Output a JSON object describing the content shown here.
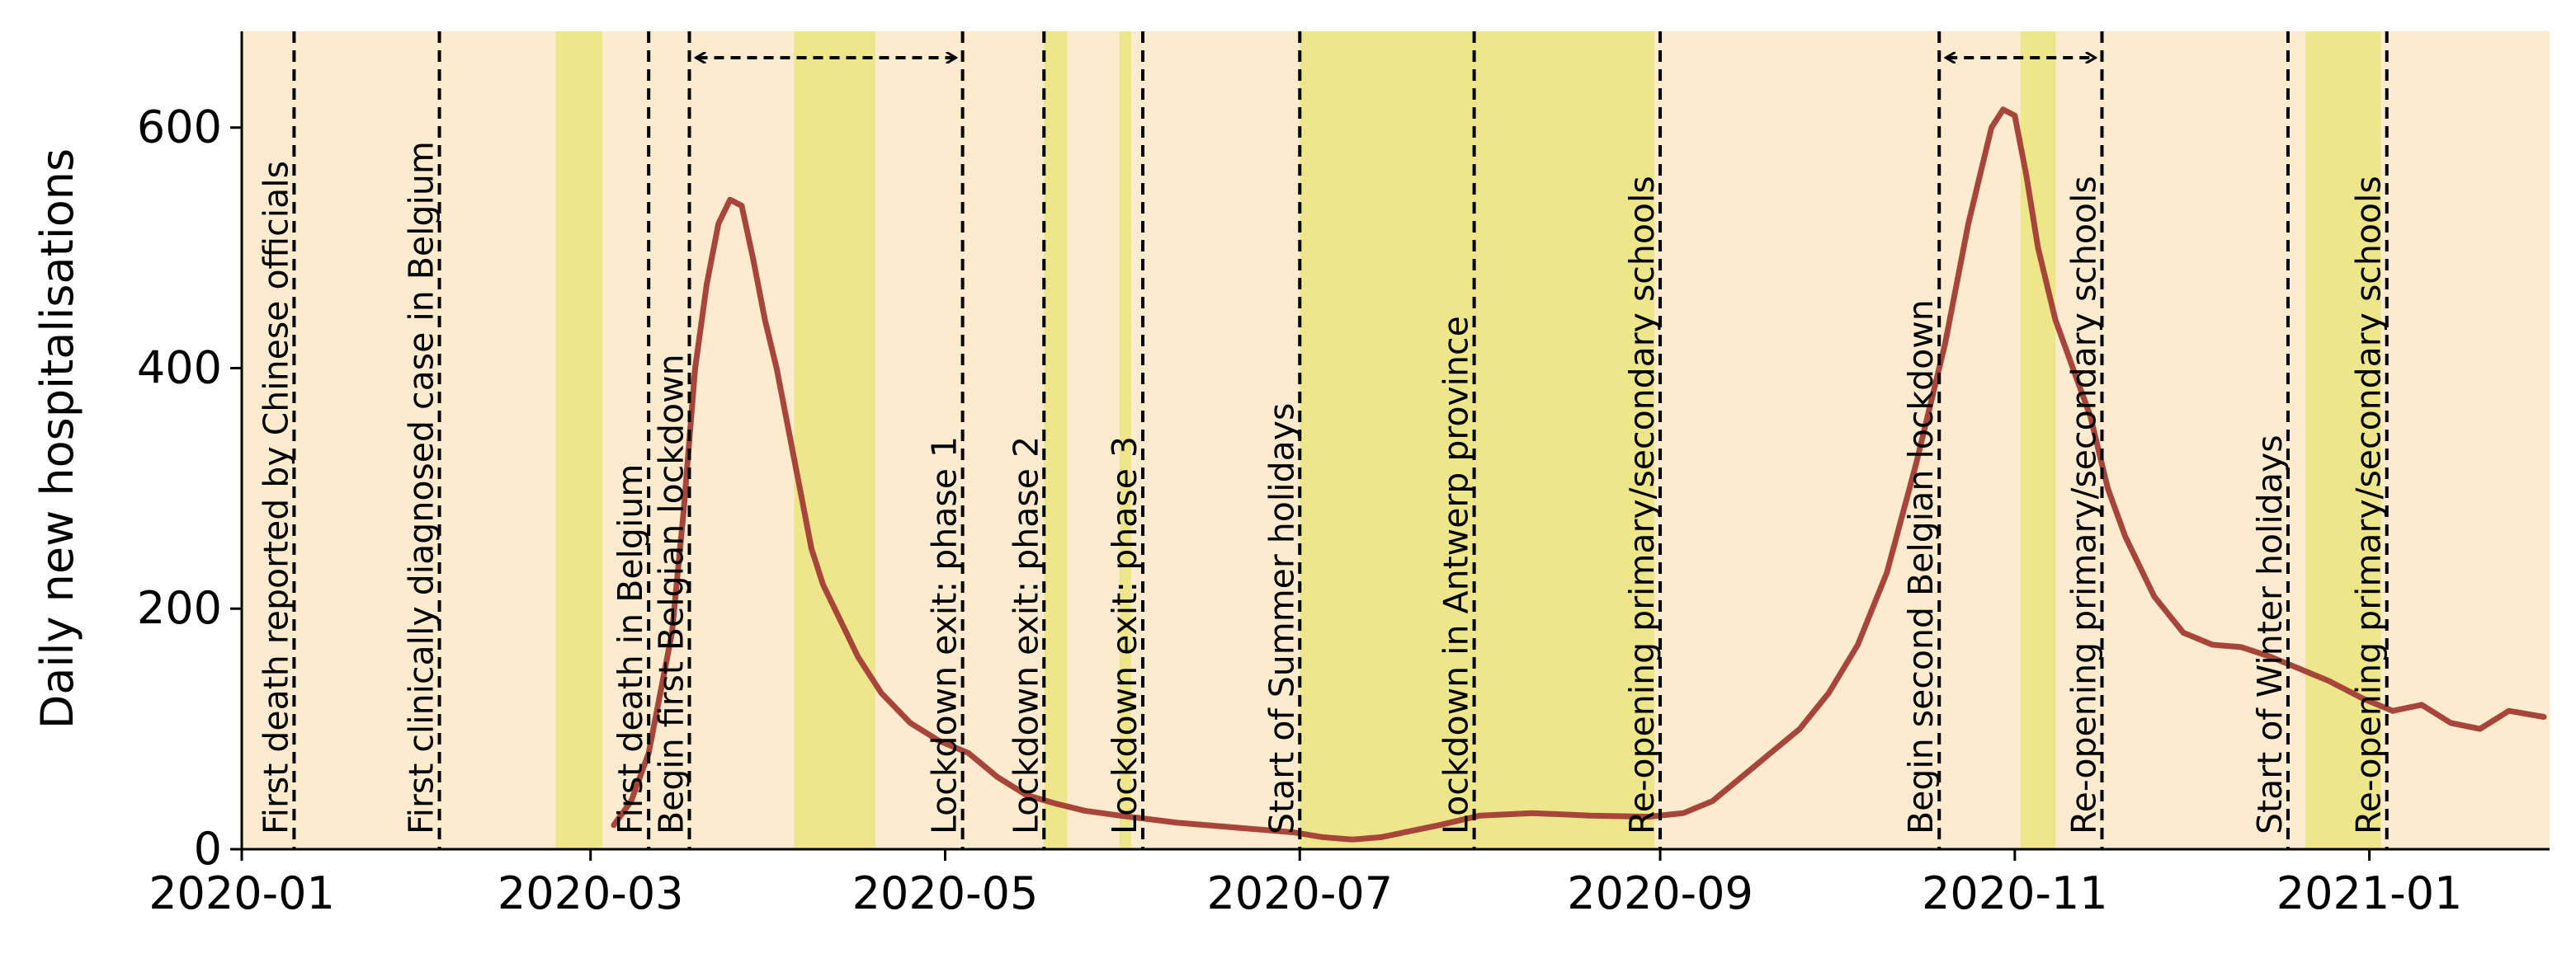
{
  "chart_data": {
    "type": "line",
    "title": "",
    "xlabel": "",
    "ylabel": "Daily new hospitalisations",
    "xlim": [
      "2020-01-01",
      "2021-02-01"
    ],
    "ylim": [
      0,
      680
    ],
    "grid": false,
    "colors": {
      "background_band": "#fdebcf",
      "highlight_band": "#eee68a",
      "line": "#a8453a",
      "event_line": "#000000"
    },
    "x_ticks": [
      "2020-01",
      "2020-03",
      "2020-05",
      "2020-07",
      "2020-09",
      "2020-11",
      "2021-01"
    ],
    "x_tick_dates": [
      "2020-01-01",
      "2020-03-01",
      "2020-05-01",
      "2020-07-01",
      "2020-09-01",
      "2020-11-01",
      "2021-01-01"
    ],
    "y_ticks": [
      0,
      200,
      400,
      600
    ],
    "series": [
      {
        "name": "",
        "x": [
          "2020-03-05",
          "2020-03-08",
          "2020-03-11",
          "2020-03-13",
          "2020-03-15",
          "2020-03-17",
          "2020-03-19",
          "2020-03-21",
          "2020-03-23",
          "2020-03-25",
          "2020-03-27",
          "2020-03-29",
          "2020-03-31",
          "2020-04-02",
          "2020-04-04",
          "2020-04-06",
          "2020-04-08",
          "2020-04-10",
          "2020-04-13",
          "2020-04-16",
          "2020-04-20",
          "2020-04-25",
          "2020-04-30",
          "2020-05-05",
          "2020-05-10",
          "2020-05-15",
          "2020-05-20",
          "2020-05-25",
          "2020-05-31",
          "2020-06-05",
          "2020-06-10",
          "2020-06-20",
          "2020-06-30",
          "2020-07-05",
          "2020-07-10",
          "2020-07-15",
          "2020-07-20",
          "2020-07-25",
          "2020-08-01",
          "2020-08-10",
          "2020-08-20",
          "2020-08-30",
          "2020-09-05",
          "2020-09-10",
          "2020-09-15",
          "2020-09-20",
          "2020-09-25",
          "2020-09-30",
          "2020-10-05",
          "2020-10-10",
          "2020-10-15",
          "2020-10-20",
          "2020-10-24",
          "2020-10-28",
          "2020-10-30",
          "2020-11-01",
          "2020-11-03",
          "2020-11-05",
          "2020-11-08",
          "2020-11-11",
          "2020-11-14",
          "2020-11-17",
          "2020-11-20",
          "2020-11-25",
          "2020-11-30",
          "2020-12-05",
          "2020-12-10",
          "2020-12-15",
          "2020-12-20",
          "2020-12-25",
          "2020-12-31",
          "2021-01-05",
          "2021-01-10",
          "2021-01-15",
          "2021-01-20",
          "2021-01-25",
          "2021-01-31"
        ],
        "values": [
          20,
          40,
          80,
          130,
          180,
          280,
          400,
          470,
          520,
          540,
          535,
          490,
          440,
          400,
          350,
          300,
          250,
          220,
          190,
          160,
          130,
          105,
          90,
          80,
          60,
          45,
          38,
          32,
          28,
          25,
          22,
          18,
          14,
          10,
          8,
          10,
          15,
          20,
          28,
          30,
          28,
          27,
          30,
          40,
          60,
          80,
          100,
          130,
          170,
          230,
          320,
          420,
          520,
          600,
          615,
          610,
          560,
          500,
          440,
          400,
          360,
          300,
          260,
          210,
          180,
          170,
          168,
          160,
          150,
          140,
          125,
          115,
          120,
          105,
          100,
          115,
          110
        ]
      }
    ],
    "highlight_bands": [
      {
        "start": "2020-02-24",
        "end": "2020-03-03"
      },
      {
        "start": "2020-04-05",
        "end": "2020-04-19"
      },
      {
        "start": "2020-05-18",
        "end": "2020-05-22"
      },
      {
        "start": "2020-05-31",
        "end": "2020-06-02"
      },
      {
        "start": "2020-07-01",
        "end": "2020-08-31"
      },
      {
        "start": "2020-11-02",
        "end": "2020-11-08"
      },
      {
        "start": "2020-12-21",
        "end": "2021-01-03"
      }
    ],
    "events": [
      {
        "date": "2020-01-10",
        "label": "First death reported by Chinese officials"
      },
      {
        "date": "2020-02-04",
        "label": "First clinically diagnosed case in Belgium"
      },
      {
        "date": "2020-03-11",
        "label": "First death in Belgium"
      },
      {
        "date": "2020-03-18",
        "label": "Begin first Belgian lockdown"
      },
      {
        "date": "2020-05-04",
        "label": "Lockdown exit: phase 1"
      },
      {
        "date": "2020-05-18",
        "label": "Lockdown exit: phase 2"
      },
      {
        "date": "2020-06-04",
        "label": "Lockdown exit: phase 3"
      },
      {
        "date": "2020-07-01",
        "label": "Start of Summer holidays"
      },
      {
        "date": "2020-07-31",
        "label": "Lockdown in Antwerp province"
      },
      {
        "date": "2020-09-01",
        "label": "Re-opening primary/secondary schools"
      },
      {
        "date": "2020-10-19",
        "label": "Begin second Belgian lockdown"
      },
      {
        "date": "2020-11-16",
        "label": "Re-opening primary/secondary schools"
      },
      {
        "date": "2020-12-18",
        "label": "Start of Winter holidays"
      },
      {
        "date": "2021-01-04",
        "label": "Re-opening primary/secondary schools"
      }
    ],
    "arrows": [
      {
        "start": "2020-03-18",
        "end": "2020-05-04"
      },
      {
        "start": "2020-10-19",
        "end": "2020-11-16"
      }
    ]
  }
}
